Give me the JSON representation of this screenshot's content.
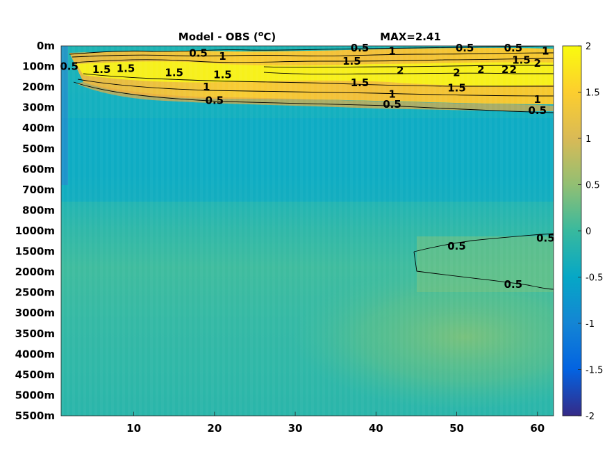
{
  "chart_data": {
    "type": "heatmap",
    "title": "Model - OBS (°C)",
    "title_parts": {
      "main": "Model - OBS (",
      "superscript": "o",
      "unit": "C)"
    },
    "annotation": "MAX=2.41",
    "max_value": 2.41,
    "x_ticks": [
      10,
      20,
      30,
      40,
      50,
      60
    ],
    "xlim": [
      1,
      62
    ],
    "y_tick_labels": [
      "0m",
      "100m",
      "200m",
      "300m",
      "400m",
      "500m",
      "600m",
      "700m",
      "800m",
      "1000m",
      "1500m",
      "2000m",
      "2500m",
      "3000m",
      "3500m",
      "4000m",
      "4500m",
      "5000m",
      "5500m"
    ],
    "colorbar": {
      "ticks": [
        2,
        1.5,
        1,
        0.5,
        0,
        -0.5,
        -1,
        -1.5,
        -2
      ],
      "tick_labels": [
        "2",
        "1.5",
        "1",
        "0.5",
        "0",
        "-0.5",
        "-1",
        "-1.5",
        "-2"
      ],
      "range": [
        -2,
        2
      ],
      "colormap": "parula"
    },
    "contour_levels": [
      0.5,
      1,
      1.5,
      2
    ],
    "contour_labels": [
      {
        "text": "0.5",
        "x": 18,
        "depth_index": 0.35
      },
      {
        "text": "1",
        "x": 21,
        "depth_index": 0.5
      },
      {
        "text": "0.5",
        "x": 38,
        "depth_index": 0.1
      },
      {
        "text": "1",
        "x": 42,
        "depth_index": 0.25
      },
      {
        "text": "0.5",
        "x": 51,
        "depth_index": 0.1
      },
      {
        "text": "0.5",
        "x": 57,
        "depth_index": 0.1
      },
      {
        "text": "1",
        "x": 61,
        "depth_index": 0.25
      },
      {
        "text": "0.5",
        "x": 2,
        "depth_index": 1.0
      },
      {
        "text": "1.5",
        "x": 6,
        "depth_index": 1.15
      },
      {
        "text": "1.5",
        "x": 9,
        "depth_index": 1.1
      },
      {
        "text": "1.5",
        "x": 15,
        "depth_index": 1.3
      },
      {
        "text": "1.5",
        "x": 21,
        "depth_index": 1.4
      },
      {
        "text": "1.5",
        "x": 37,
        "depth_index": 0.75
      },
      {
        "text": "2",
        "x": 43,
        "depth_index": 1.2
      },
      {
        "text": "2",
        "x": 50,
        "depth_index": 1.3
      },
      {
        "text": "2",
        "x": 53,
        "depth_index": 1.15
      },
      {
        "text": "2",
        "x": 56,
        "depth_index": 1.15
      },
      {
        "text": "2",
        "x": 57,
        "depth_index": 1.15
      },
      {
        "text": "1.5",
        "x": 58,
        "depth_index": 0.7
      },
      {
        "text": "2",
        "x": 60,
        "depth_index": 0.85
      },
      {
        "text": "1",
        "x": 19,
        "depth_index": 2.0
      },
      {
        "text": "0.5",
        "x": 20,
        "depth_index": 2.65
      },
      {
        "text": "1.5",
        "x": 38,
        "depth_index": 1.8
      },
      {
        "text": "1",
        "x": 42,
        "depth_index": 2.35
      },
      {
        "text": "0.5",
        "x": 42,
        "depth_index": 2.85
      },
      {
        "text": "1.5",
        "x": 50,
        "depth_index": 2.05
      },
      {
        "text": "1",
        "x": 60,
        "depth_index": 2.6
      },
      {
        "text": "0.5",
        "x": 60,
        "depth_index": 3.15
      },
      {
        "text": "0.5",
        "x": 50,
        "depth_index": 9.75
      },
      {
        "text": "0.5",
        "x": 61,
        "depth_index": 9.35
      },
      {
        "text": "0.5",
        "x": 57,
        "depth_index": 11.6
      }
    ]
  }
}
